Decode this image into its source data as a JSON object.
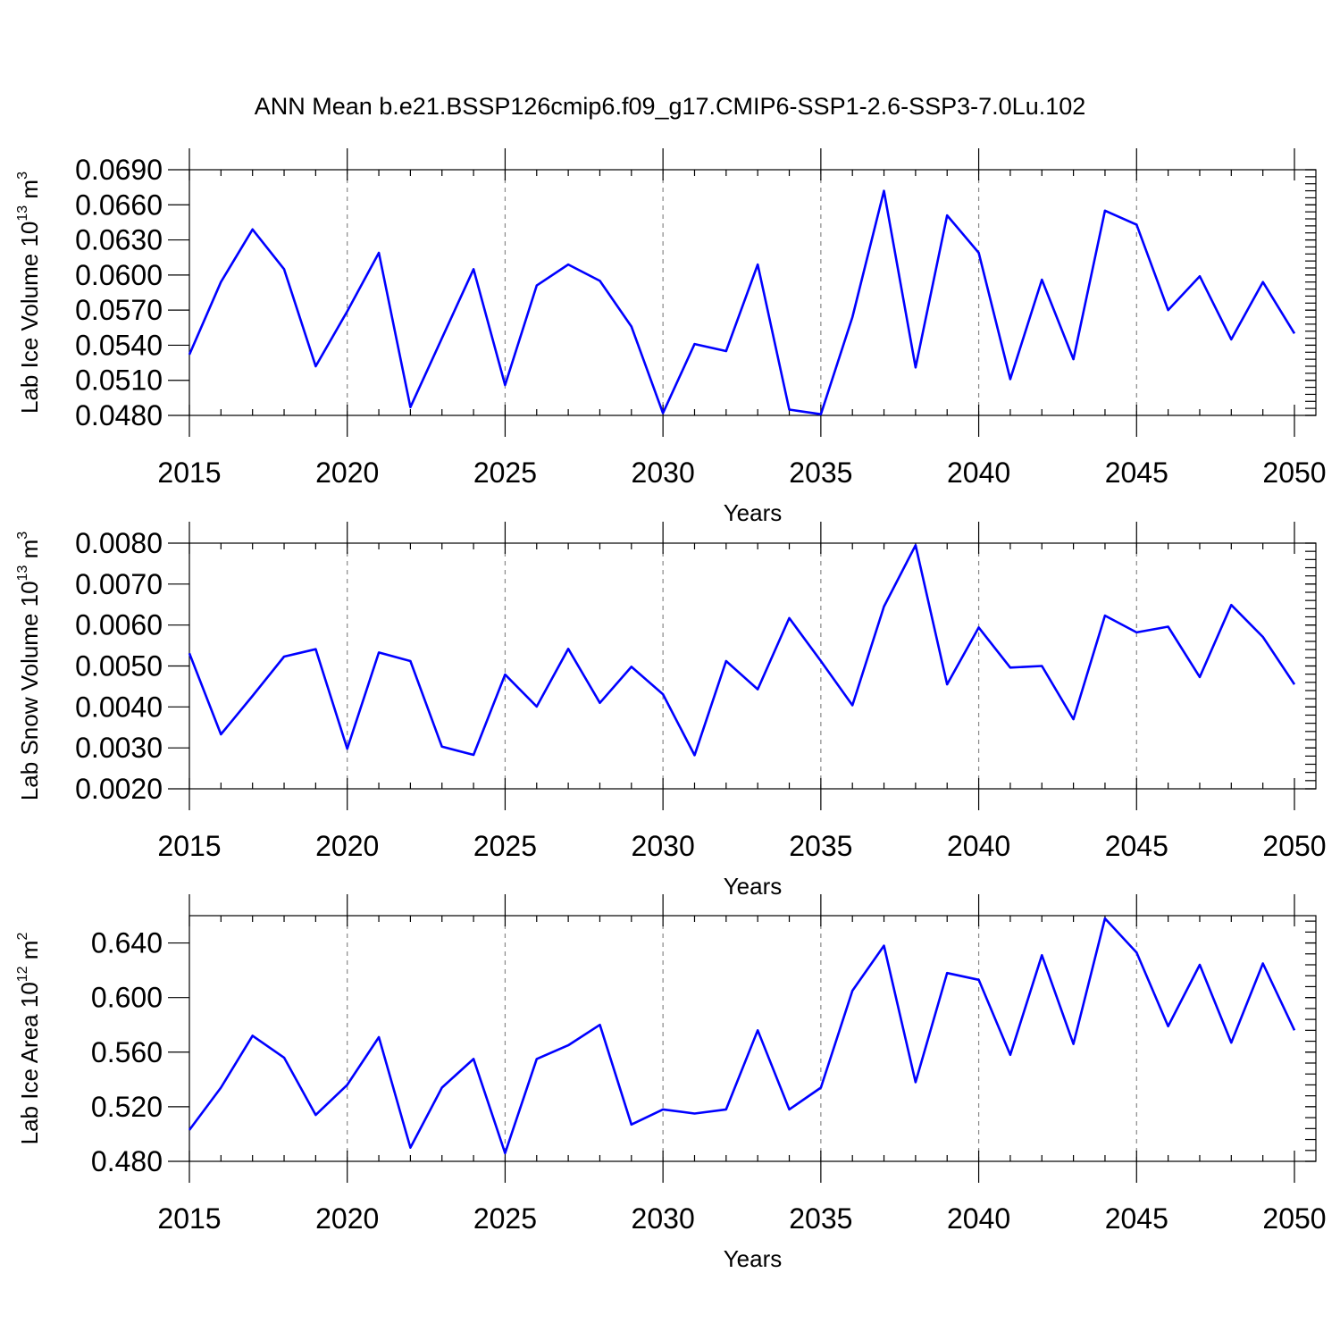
{
  "figure": {
    "title": "ANN Mean b.e21.BSSP126cmip6.f09_g17.CMIP6-SSP1-2.6-SSP3-7.0Lu.102",
    "line_color": "#0000ff"
  },
  "chart_data": [
    {
      "type": "line",
      "ylabel_main": "Lab Ice Volume 10",
      "ylabel_exp": "13",
      "ylabel_unit": " m",
      "ylabel_unit_exp": "3",
      "xlabel": "Years",
      "xlim": [
        2015,
        2050
      ],
      "ylim": [
        0.048,
        0.069
      ],
      "yticks": [
        "0.0690",
        "0.0660",
        "0.0630",
        "0.0600",
        "0.0570",
        "0.0540",
        "0.0510",
        "0.0480"
      ],
      "ytick_values": [
        0.069,
        0.066,
        0.063,
        0.06,
        0.057,
        0.054,
        0.051,
        0.048
      ],
      "xticks": [
        "2015",
        "2020",
        "2025",
        "2030",
        "2035",
        "2040",
        "2045",
        "2050"
      ],
      "grid": "vertical dashed at major x ticks",
      "x": [
        2015,
        2016,
        2017,
        2018,
        2019,
        2020,
        2021,
        2022,
        2023,
        2024,
        2025,
        2026,
        2027,
        2028,
        2029,
        2030,
        2031,
        2032,
        2033,
        2034,
        2035,
        2036,
        2037,
        2038,
        2039,
        2040,
        2041,
        2042,
        2043,
        2044,
        2045,
        2046,
        2047,
        2048,
        2049,
        2050
      ],
      "y": [
        0.0532,
        0.0594,
        0.0639,
        0.0605,
        0.0522,
        0.0569,
        0.0619,
        0.0487,
        0.0546,
        0.0605,
        0.0506,
        0.0591,
        0.0609,
        0.0595,
        0.0556,
        0.0482,
        0.0541,
        0.0535,
        0.0609,
        0.0485,
        0.0481,
        0.0564,
        0.0672,
        0.0521,
        0.0651,
        0.0619,
        0.0511,
        0.0596,
        0.0528,
        0.0655,
        0.0643,
        0.057,
        0.0599,
        0.0545,
        0.0594,
        0.055
      ]
    },
    {
      "type": "line",
      "ylabel_main": "Lab Snow Volume 10",
      "ylabel_exp": "13",
      "ylabel_unit": " m",
      "ylabel_unit_exp": "3",
      "xlabel": "Years",
      "xlim": [
        2015,
        2050
      ],
      "ylim": [
        0.002,
        0.008
      ],
      "yticks": [
        "0.0080",
        "0.0070",
        "0.0060",
        "0.0050",
        "0.0040",
        "0.0030",
        "0.0020"
      ],
      "ytick_values": [
        0.008,
        0.007,
        0.006,
        0.005,
        0.004,
        0.003,
        0.002
      ],
      "xticks": [
        "2015",
        "2020",
        "2025",
        "2030",
        "2035",
        "2040",
        "2045",
        "2050"
      ],
      "grid": "vertical dashed at major x ticks",
      "x": [
        2015,
        2016,
        2017,
        2018,
        2019,
        2020,
        2021,
        2022,
        2023,
        2024,
        2025,
        2026,
        2027,
        2028,
        2029,
        2030,
        2031,
        2032,
        2033,
        2034,
        2035,
        2036,
        2037,
        2038,
        2039,
        2040,
        2041,
        2042,
        2043,
        2044,
        2045,
        2046,
        2047,
        2048,
        2049,
        2050
      ],
      "y": [
        0.00531,
        0.00333,
        0.00427,
        0.00523,
        0.00541,
        0.00298,
        0.00533,
        0.00512,
        0.00303,
        0.00283,
        0.00479,
        0.00401,
        0.00542,
        0.0041,
        0.00498,
        0.00431,
        0.00282,
        0.00512,
        0.00443,
        0.00617,
        0.00512,
        0.00404,
        0.00645,
        0.00795,
        0.00455,
        0.00594,
        0.00496,
        0.005,
        0.0037,
        0.00623,
        0.00582,
        0.00596,
        0.00473,
        0.00649,
        0.00571,
        0.00455
      ]
    },
    {
      "type": "line",
      "ylabel_main": "Lab Ice Area 10",
      "ylabel_exp": "12",
      "ylabel_unit": " m",
      "ylabel_unit_exp": "2",
      "xlabel": "Years",
      "xlim": [
        2015,
        2050
      ],
      "ylim": [
        0.48,
        0.66
      ],
      "yticks": [
        "0.640",
        "0.600",
        "0.560",
        "0.520",
        "0.480"
      ],
      "ytick_values": [
        0.64,
        0.6,
        0.56,
        0.52,
        0.48
      ],
      "xticks": [
        "2015",
        "2020",
        "2025",
        "2030",
        "2035",
        "2040",
        "2045",
        "2050"
      ],
      "grid": "vertical dashed at major x ticks",
      "x": [
        2015,
        2016,
        2017,
        2018,
        2019,
        2020,
        2021,
        2022,
        2023,
        2024,
        2025,
        2026,
        2027,
        2028,
        2029,
        2030,
        2031,
        2032,
        2033,
        2034,
        2035,
        2036,
        2037,
        2038,
        2039,
        2040,
        2041,
        2042,
        2043,
        2044,
        2045,
        2046,
        2047,
        2048,
        2049,
        2050
      ],
      "y": [
        0.503,
        0.534,
        0.572,
        0.556,
        0.514,
        0.536,
        0.571,
        0.49,
        0.534,
        0.555,
        0.486,
        0.555,
        0.565,
        0.58,
        0.507,
        0.518,
        0.515,
        0.518,
        0.576,
        0.518,
        0.534,
        0.605,
        0.638,
        0.538,
        0.618,
        0.613,
        0.558,
        0.631,
        0.566,
        0.658,
        0.633,
        0.579,
        0.624,
        0.567,
        0.625,
        0.576
      ]
    }
  ]
}
